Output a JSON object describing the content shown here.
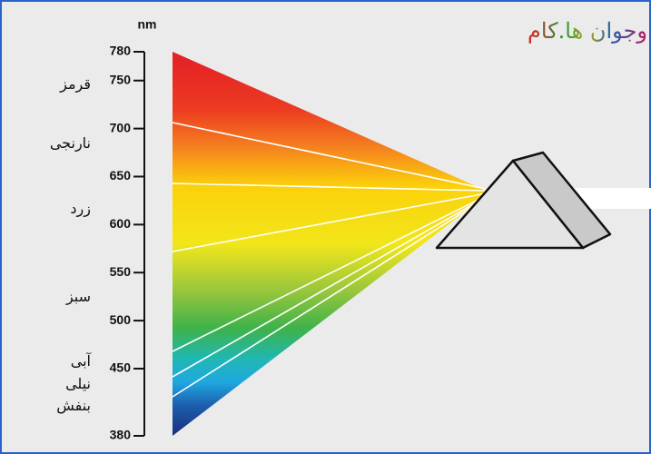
{
  "watermark": "وجوان ها.کام",
  "axis": {
    "unit": "nm",
    "range": [
      380,
      780
    ],
    "ticks": [
      780,
      750,
      700,
      650,
      600,
      550,
      500,
      450,
      380
    ]
  },
  "colors": [
    "قرمز",
    "نارنجی",
    "زرد",
    "سبز",
    "آبی",
    "نیلی",
    "بنفش"
  ]
}
